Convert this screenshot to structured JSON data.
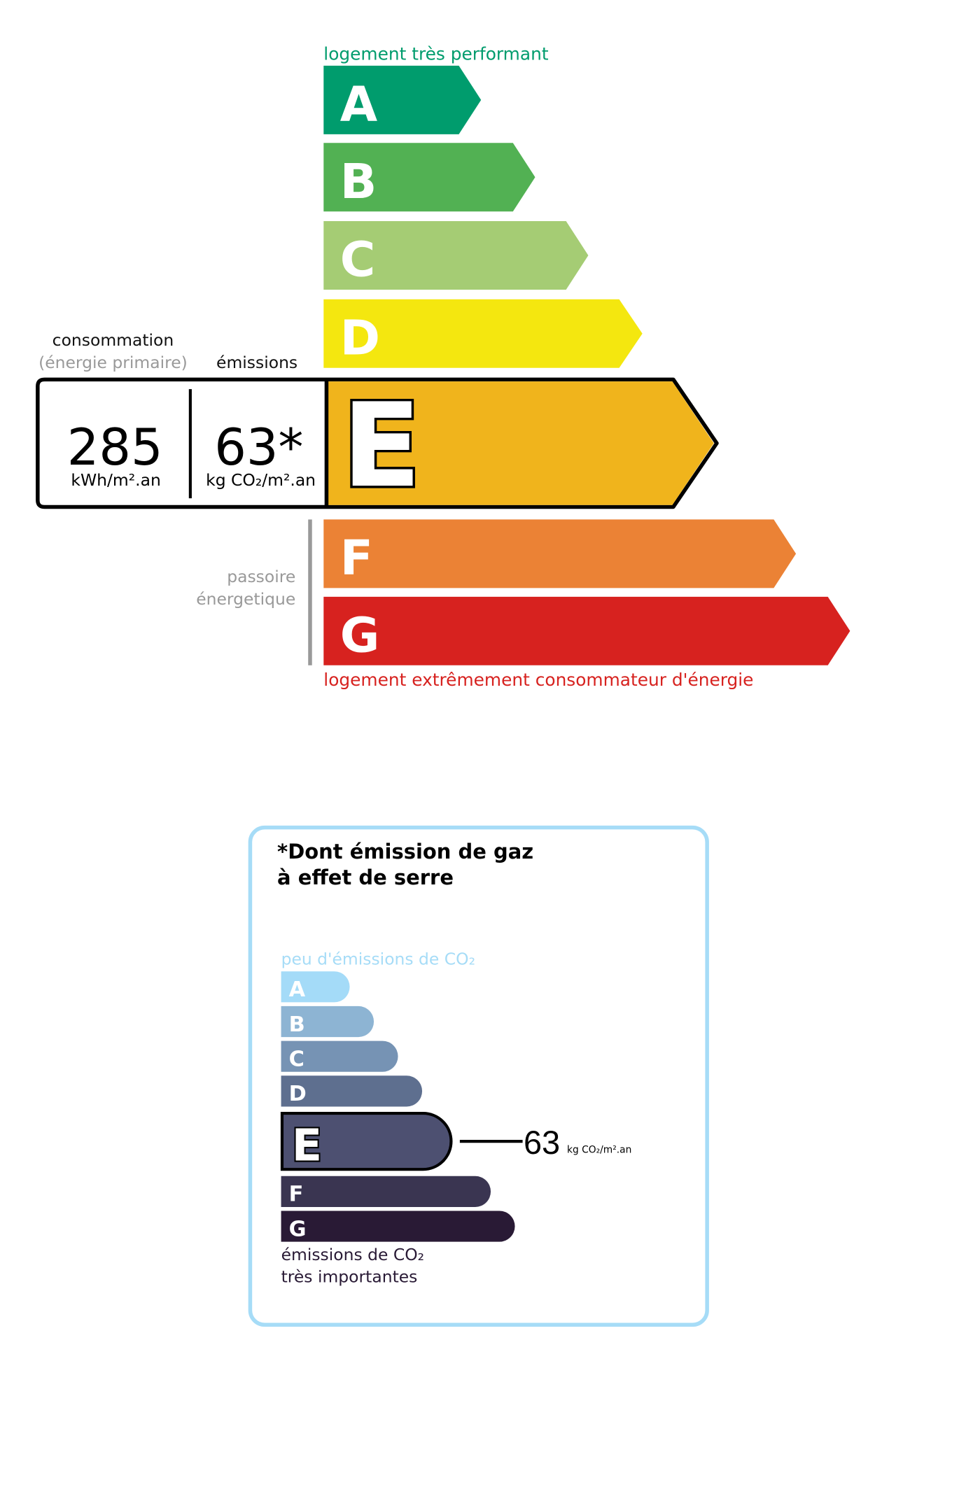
{
  "energy_label": {
    "top_caption": "logement très performant",
    "bottom_caption": "logement extrêmement consommateur d'énergie",
    "passoire_line1": "passoire",
    "passoire_line2": "énergetique",
    "consumption_label": "consommation",
    "consumption_sublabel": "(énergie primaire)",
    "emissions_label": "émissions",
    "consumption_value": "285",
    "consumption_unit": "kWh/m².an",
    "emissions_value": "63*",
    "emissions_unit": "kg CO₂/m².an",
    "current_class": "E",
    "classes": [
      {
        "letter": "A",
        "color": "#009c6d"
      },
      {
        "letter": "B",
        "color": "#52b153"
      },
      {
        "letter": "C",
        "color": "#a5cc74"
      },
      {
        "letter": "D",
        "color": "#f4e70f"
      },
      {
        "letter": "E",
        "color": "#f0b41c"
      },
      {
        "letter": "F",
        "color": "#eb8235"
      },
      {
        "letter": "G",
        "color": "#d7221f"
      }
    ],
    "top_caption_color": "#009c6d",
    "bottom_caption_color": "#d7221f"
  },
  "ges_label": {
    "title_line1": "*Dont émission de gaz",
    "title_line2": "à effet de serre",
    "top_caption": "peu d'émissions de CO₂",
    "bottom_caption_line1": "émissions de CO₂",
    "bottom_caption_line2": "très importantes",
    "value": "63",
    "unit": "kg CO₂/m².an",
    "current_class": "E",
    "classes": [
      {
        "letter": "A",
        "color": "#a4dbf8"
      },
      {
        "letter": "B",
        "color": "#8db4d3"
      },
      {
        "letter": "C",
        "color": "#7693b4"
      },
      {
        "letter": "D",
        "color": "#5e6f8f"
      },
      {
        "letter": "E",
        "color": "#4d5071"
      },
      {
        "letter": "F",
        "color": "#3a3551"
      },
      {
        "letter": "G",
        "color": "#291a35"
      }
    ],
    "border_color": "#a6dcf7"
  }
}
